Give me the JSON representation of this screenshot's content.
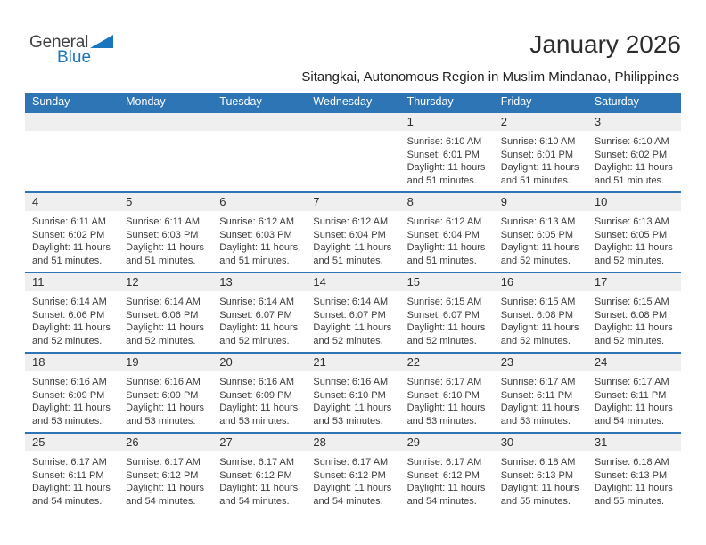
{
  "logo": {
    "part1": "General",
    "part2": "Blue",
    "triangle_icon": "flag-triangle"
  },
  "title": "January 2026",
  "subtitle": "Sitangkai, Autonomous Region in Muslim Mindanao, Philippines",
  "colors": {
    "header_blue": "#2E75B6",
    "line_blue": "#2E75B6",
    "band_gray": "#EFEFEF",
    "logo_blue": "#1B75BC"
  },
  "weekdays": [
    "Sunday",
    "Monday",
    "Tuesday",
    "Wednesday",
    "Thursday",
    "Friday",
    "Saturday"
  ],
  "weeks": [
    [
      null,
      null,
      null,
      null,
      {
        "day": "1",
        "lines": [
          "Sunrise: 6:10 AM",
          "Sunset: 6:01 PM",
          "Daylight: 11 hours",
          "and 51 minutes."
        ]
      },
      {
        "day": "2",
        "lines": [
          "Sunrise: 6:10 AM",
          "Sunset: 6:01 PM",
          "Daylight: 11 hours",
          "and 51 minutes."
        ]
      },
      {
        "day": "3",
        "lines": [
          "Sunrise: 6:10 AM",
          "Sunset: 6:02 PM",
          "Daylight: 11 hours",
          "and 51 minutes."
        ]
      }
    ],
    [
      {
        "day": "4",
        "lines": [
          "Sunrise: 6:11 AM",
          "Sunset: 6:02 PM",
          "Daylight: 11 hours",
          "and 51 minutes."
        ]
      },
      {
        "day": "5",
        "lines": [
          "Sunrise: 6:11 AM",
          "Sunset: 6:03 PM",
          "Daylight: 11 hours",
          "and 51 minutes."
        ]
      },
      {
        "day": "6",
        "lines": [
          "Sunrise: 6:12 AM",
          "Sunset: 6:03 PM",
          "Daylight: 11 hours",
          "and 51 minutes."
        ]
      },
      {
        "day": "7",
        "lines": [
          "Sunrise: 6:12 AM",
          "Sunset: 6:04 PM",
          "Daylight: 11 hours",
          "and 51 minutes."
        ]
      },
      {
        "day": "8",
        "lines": [
          "Sunrise: 6:12 AM",
          "Sunset: 6:04 PM",
          "Daylight: 11 hours",
          "and 51 minutes."
        ]
      },
      {
        "day": "9",
        "lines": [
          "Sunrise: 6:13 AM",
          "Sunset: 6:05 PM",
          "Daylight: 11 hours",
          "and 52 minutes."
        ]
      },
      {
        "day": "10",
        "lines": [
          "Sunrise: 6:13 AM",
          "Sunset: 6:05 PM",
          "Daylight: 11 hours",
          "and 52 minutes."
        ]
      }
    ],
    [
      {
        "day": "11",
        "lines": [
          "Sunrise: 6:14 AM",
          "Sunset: 6:06 PM",
          "Daylight: 11 hours",
          "and 52 minutes."
        ]
      },
      {
        "day": "12",
        "lines": [
          "Sunrise: 6:14 AM",
          "Sunset: 6:06 PM",
          "Daylight: 11 hours",
          "and 52 minutes."
        ]
      },
      {
        "day": "13",
        "lines": [
          "Sunrise: 6:14 AM",
          "Sunset: 6:07 PM",
          "Daylight: 11 hours",
          "and 52 minutes."
        ]
      },
      {
        "day": "14",
        "lines": [
          "Sunrise: 6:14 AM",
          "Sunset: 6:07 PM",
          "Daylight: 11 hours",
          "and 52 minutes."
        ]
      },
      {
        "day": "15",
        "lines": [
          "Sunrise: 6:15 AM",
          "Sunset: 6:07 PM",
          "Daylight: 11 hours",
          "and 52 minutes."
        ]
      },
      {
        "day": "16",
        "lines": [
          "Sunrise: 6:15 AM",
          "Sunset: 6:08 PM",
          "Daylight: 11 hours",
          "and 52 minutes."
        ]
      },
      {
        "day": "17",
        "lines": [
          "Sunrise: 6:15 AM",
          "Sunset: 6:08 PM",
          "Daylight: 11 hours",
          "and 52 minutes."
        ]
      }
    ],
    [
      {
        "day": "18",
        "lines": [
          "Sunrise: 6:16 AM",
          "Sunset: 6:09 PM",
          "Daylight: 11 hours",
          "and 53 minutes."
        ]
      },
      {
        "day": "19",
        "lines": [
          "Sunrise: 6:16 AM",
          "Sunset: 6:09 PM",
          "Daylight: 11 hours",
          "and 53 minutes."
        ]
      },
      {
        "day": "20",
        "lines": [
          "Sunrise: 6:16 AM",
          "Sunset: 6:09 PM",
          "Daylight: 11 hours",
          "and 53 minutes."
        ]
      },
      {
        "day": "21",
        "lines": [
          "Sunrise: 6:16 AM",
          "Sunset: 6:10 PM",
          "Daylight: 11 hours",
          "and 53 minutes."
        ]
      },
      {
        "day": "22",
        "lines": [
          "Sunrise: 6:17 AM",
          "Sunset: 6:10 PM",
          "Daylight: 11 hours",
          "and 53 minutes."
        ]
      },
      {
        "day": "23",
        "lines": [
          "Sunrise: 6:17 AM",
          "Sunset: 6:11 PM",
          "Daylight: 11 hours",
          "and 53 minutes."
        ]
      },
      {
        "day": "24",
        "lines": [
          "Sunrise: 6:17 AM",
          "Sunset: 6:11 PM",
          "Daylight: 11 hours",
          "and 54 minutes."
        ]
      }
    ],
    [
      {
        "day": "25",
        "lines": [
          "Sunrise: 6:17 AM",
          "Sunset: 6:11 PM",
          "Daylight: 11 hours",
          "and 54 minutes."
        ]
      },
      {
        "day": "26",
        "lines": [
          "Sunrise: 6:17 AM",
          "Sunset: 6:12 PM",
          "Daylight: 11 hours",
          "and 54 minutes."
        ]
      },
      {
        "day": "27",
        "lines": [
          "Sunrise: 6:17 AM",
          "Sunset: 6:12 PM",
          "Daylight: 11 hours",
          "and 54 minutes."
        ]
      },
      {
        "day": "28",
        "lines": [
          "Sunrise: 6:17 AM",
          "Sunset: 6:12 PM",
          "Daylight: 11 hours",
          "and 54 minutes."
        ]
      },
      {
        "day": "29",
        "lines": [
          "Sunrise: 6:17 AM",
          "Sunset: 6:12 PM",
          "Daylight: 11 hours",
          "and 54 minutes."
        ]
      },
      {
        "day": "30",
        "lines": [
          "Sunrise: 6:18 AM",
          "Sunset: 6:13 PM",
          "Daylight: 11 hours",
          "and 55 minutes."
        ]
      },
      {
        "day": "31",
        "lines": [
          "Sunrise: 6:18 AM",
          "Sunset: 6:13 PM",
          "Daylight: 11 hours",
          "and 55 minutes."
        ]
      }
    ]
  ]
}
